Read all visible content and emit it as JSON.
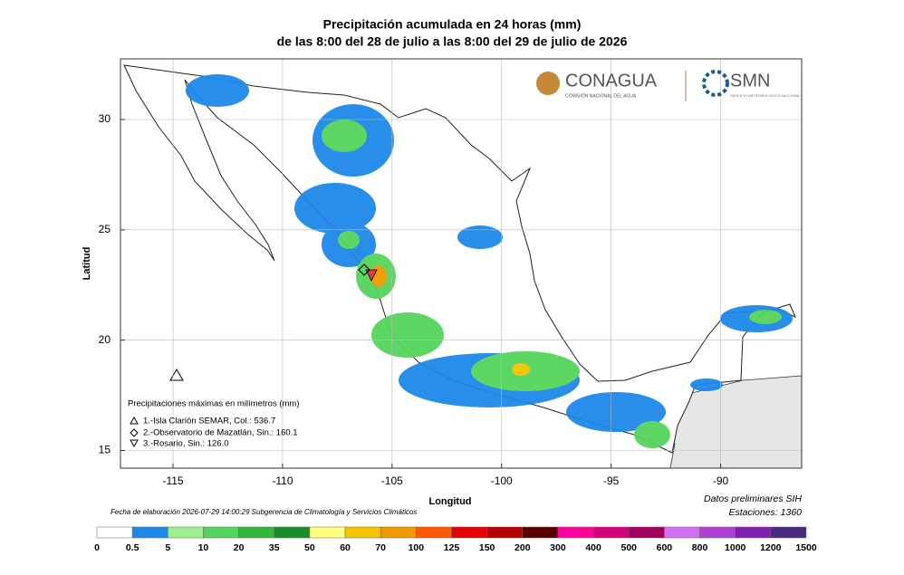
{
  "title": "Precipitación acumulada en 24 horas (mm)",
  "subtitle": "de las 8:00 del 28 de julio a las 8:00 del 29 de julio de 2026",
  "logos": {
    "conagua": "CONAGUA",
    "conagua_sub": "COMISIÓN NACIONAL DEL AGUA",
    "smn": "SMN",
    "smn_sub": "SERVICIO METEOROLÓGICO NACIONAL"
  },
  "map": {
    "xlabel": "Longitud",
    "ylabel": "Latitud",
    "xlim": [
      -117.4,
      -86.3
    ],
    "ylim": [
      14.2,
      32.75
    ],
    "xticks": [
      -115,
      -110,
      -105,
      -100,
      -95,
      -90
    ],
    "yticks": [
      15,
      20,
      25,
      30
    ],
    "grid": true
  },
  "maxima": {
    "title": "Precipitaciones máximas en milímetros (mm)",
    "items": [
      "1.-Isla Clarión SEMAR, Col.: 536.7",
      "2.-Observatorio de Mazatlán, Sin.: 160.1",
      "3.-Rosario, Sin.: 126.0"
    ]
  },
  "footer": {
    "date": "Fecha de elaboración 2026-07-29 14:00:29 Subgerencia de Climatología y Servicios Climáticos",
    "prelim": "Datos preliminares SIH",
    "stations": "Estaciones: 1360"
  },
  "scale": {
    "labels": [
      0,
      0.5,
      5,
      10,
      20,
      35,
      50,
      60,
      70,
      100,
      125,
      150,
      200,
      300,
      400,
      500,
      600,
      800,
      1000,
      1200,
      1500
    ],
    "colors": [
      "#ffffff",
      "#1e88e8",
      "#9cf08e",
      "#55d45c",
      "#2fb83c",
      "#1a8a2a",
      "#ffff80",
      "#f6c400",
      "#f09a00",
      "#ff5a00",
      "#e60000",
      "#b40000",
      "#5a0000",
      "#ff00a0",
      "#d6007c",
      "#a0005e",
      "#d070f0",
      "#b040d0",
      "#8020b0",
      "#4a2a80"
    ]
  }
}
